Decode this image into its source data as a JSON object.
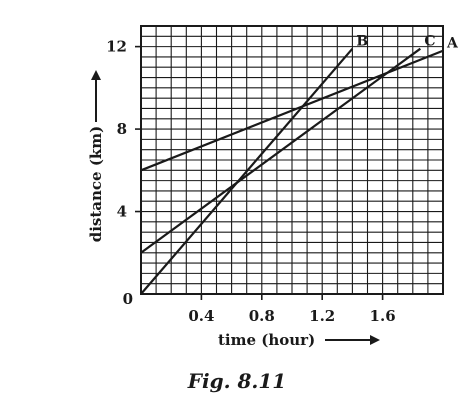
{
  "caption": "Fig. 8.11",
  "colors": {
    "ink": "#1a1a1a",
    "grid": "#1a1a1a",
    "background": "#ffffff"
  },
  "chart_data": {
    "type": "line",
    "xlabel": "time (hour)",
    "ylabel": "distance (km)",
    "xlim": [
      0,
      2.0
    ],
    "ylim": [
      0,
      13
    ],
    "x_ticks": [
      0.4,
      0.8,
      1.2,
      1.6
    ],
    "x_tick_labels": [
      "0.4",
      "0.8",
      "1.2",
      "1.6"
    ],
    "y_ticks": [
      4,
      8,
      12
    ],
    "y_tick_labels": [
      "4",
      "8",
      "12"
    ],
    "origin_label": "0",
    "grid": true,
    "series": [
      {
        "name": "A",
        "x": [
          0,
          2.0
        ],
        "y": [
          6.0,
          11.8
        ]
      },
      {
        "name": "B",
        "x": [
          0,
          1.4
        ],
        "y": [
          0,
          11.9
        ]
      },
      {
        "name": "C",
        "x": [
          0,
          1.85
        ],
        "y": [
          2.0,
          11.9
        ]
      }
    ]
  }
}
